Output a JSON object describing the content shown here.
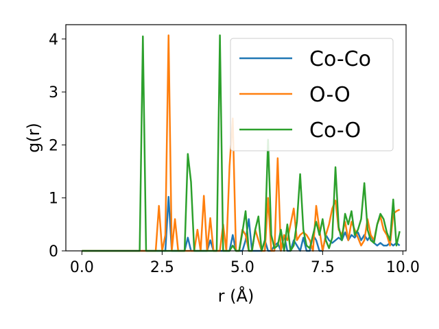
{
  "chart_data": {
    "type": "line",
    "xlabel": "r (Å)",
    "ylabel": "g(r)",
    "xlim": [
      -0.5,
      10.1
    ],
    "ylim": [
      0,
      4.27
    ],
    "xticks": [
      0.0,
      2.5,
      5.0,
      7.5,
      10.0
    ],
    "xtick_labels": [
      "0.0",
      "2.5",
      "5.0",
      "7.5",
      "10.0"
    ],
    "yticks": [
      0,
      1,
      2,
      3,
      4
    ],
    "ytick_labels": [
      "0",
      "1",
      "2",
      "3",
      "4"
    ],
    "grid": false,
    "legend_position": "upper-right",
    "x": [
      0.0,
      0.1,
      0.2,
      0.3,
      0.4,
      0.5,
      0.6,
      0.7,
      0.8,
      0.9,
      1.0,
      1.1,
      1.2,
      1.3,
      1.4,
      1.5,
      1.6,
      1.7,
      1.8,
      1.9,
      2.0,
      2.1,
      2.2,
      2.3,
      2.4,
      2.5,
      2.6,
      2.7,
      2.8,
      2.9,
      3.0,
      3.1,
      3.2,
      3.3,
      3.4,
      3.5,
      3.6,
      3.7,
      3.8,
      3.9,
      4.0,
      4.1,
      4.2,
      4.3,
      4.4,
      4.5,
      4.6,
      4.7,
      4.8,
      4.9,
      5.0,
      5.1,
      5.2,
      5.3,
      5.4,
      5.5,
      5.6,
      5.7,
      5.8,
      5.9,
      6.0,
      6.1,
      6.2,
      6.3,
      6.4,
      6.5,
      6.6,
      6.7,
      6.8,
      6.9,
      7.0,
      7.1,
      7.2,
      7.3,
      7.4,
      7.5,
      7.6,
      7.7,
      7.8,
      7.9,
      8.0,
      8.1,
      8.2,
      8.3,
      8.4,
      8.5,
      8.6,
      8.7,
      8.8,
      8.9,
      9.0,
      9.1,
      9.2,
      9.3,
      9.4,
      9.5,
      9.6,
      9.7,
      9.8,
      9.9
    ],
    "series": [
      {
        "name": "Co-Co",
        "color": "#1f77b4",
        "values": [
          0,
          0,
          0,
          0,
          0,
          0,
          0,
          0,
          0,
          0,
          0,
          0,
          0,
          0,
          0,
          0,
          0,
          0,
          0,
          0,
          0,
          0,
          0,
          0,
          0,
          0,
          0,
          1.02,
          0,
          0,
          0,
          0,
          0,
          0.25,
          0,
          0,
          0,
          0,
          0,
          0,
          0.2,
          0,
          0,
          0,
          0,
          0,
          0,
          0.3,
          0,
          0,
          0,
          0.2,
          0.6,
          0,
          0,
          0,
          0,
          0.2,
          0,
          0,
          0.1,
          0.15,
          0,
          0.3,
          0,
          0,
          0.2,
          0.1,
          0,
          0.25,
          0,
          0,
          0.3,
          0.2,
          0,
          0,
          0.3,
          0.2,
          0.15,
          0.2,
          0.25,
          0.2,
          0.35,
          0.2,
          0.3,
          0.25,
          0.35,
          0.2,
          0.3,
          0.2,
          0.3,
          0.15,
          0.1,
          0.15,
          0.1,
          0.1,
          0.15,
          0.1,
          0.15,
          0.1
        ]
      },
      {
        "name": "O-O",
        "color": "#ff7f0e",
        "values": [
          0,
          0,
          0,
          0,
          0,
          0,
          0,
          0,
          0,
          0,
          0,
          0,
          0,
          0,
          0,
          0,
          0,
          0,
          0,
          0,
          0,
          0,
          0,
          0,
          0.85,
          0,
          0.3,
          4.07,
          0,
          0.6,
          0,
          0,
          0,
          0,
          0,
          0,
          0.4,
          0,
          1.04,
          0,
          0.62,
          0,
          0,
          0,
          0.5,
          0,
          1.6,
          2.5,
          0,
          0,
          0.4,
          0.3,
          0,
          0,
          0.4,
          0.2,
          0,
          0,
          1.0,
          0,
          0,
          1.75,
          0,
          0.3,
          0.2,
          0.5,
          0.8,
          0.2,
          0.3,
          0.35,
          0.3,
          0.2,
          0,
          0.85,
          0.4,
          0,
          0.3,
          0.5,
          0.8,
          0.95,
          0.4,
          0.3,
          0.55,
          0.2,
          0.55,
          0.4,
          0.25,
          0.1,
          0.2,
          0.6,
          0.3,
          0.2,
          0.5,
          0.65,
          0.4,
          0.3,
          0.1,
          0.7,
          0.75,
          0.78
        ]
      },
      {
        "name": "Co-O",
        "color": "#2ca02c",
        "values": [
          0,
          0,
          0,
          0,
          0,
          0,
          0,
          0,
          0,
          0,
          0,
          0,
          0,
          0,
          0,
          0,
          0,
          0,
          0,
          4.05,
          0,
          0,
          0,
          0,
          0,
          0,
          0,
          0,
          0,
          0,
          0,
          0,
          0,
          1.83,
          1.3,
          0,
          0,
          0,
          0,
          0,
          0,
          0,
          0,
          4.07,
          0,
          0,
          0,
          0.1,
          0,
          0,
          0.35,
          0.75,
          0,
          0,
          0.4,
          0.65,
          0,
          0.2,
          2.1,
          0.3,
          0.05,
          0.1,
          0.4,
          0,
          0.5,
          0,
          0.1,
          0.55,
          1.45,
          0.4,
          0.1,
          0.05,
          0.3,
          0.55,
          0.3,
          0.6,
          0.2,
          0.05,
          0.25,
          1.58,
          0.45,
          0.2,
          0.7,
          0.5,
          0.75,
          0.3,
          0.4,
          0.6,
          1.28,
          0.4,
          0.2,
          0.15,
          0.5,
          0.7,
          0.6,
          0.35,
          0.2,
          0.97,
          0.1,
          0.37
        ]
      }
    ]
  }
}
